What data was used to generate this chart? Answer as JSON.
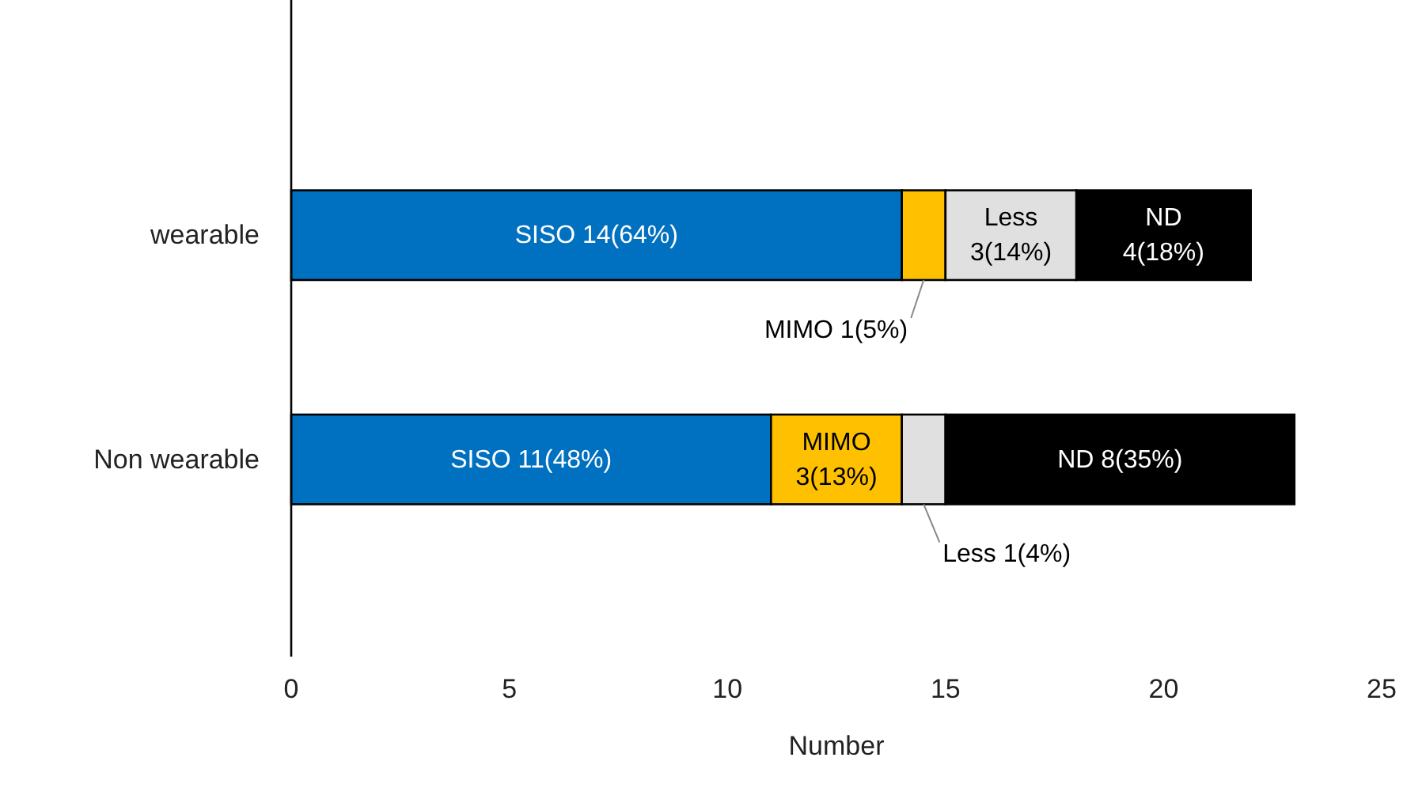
{
  "chart_data": {
    "type": "bar",
    "orientation": "horizontal",
    "stacked": true,
    "xlabel": "Number",
    "categories": [
      "wearable",
      "Non wearable"
    ],
    "xlim": [
      0,
      25
    ],
    "xticks": [
      0,
      5,
      10,
      15,
      20,
      25
    ],
    "grid": false,
    "series": [
      {
        "color": "#0070c0",
        "values": [
          14,
          11
        ],
        "value_labels": [
          "SISO 14(64%)",
          "SISO 11(48%)"
        ]
      },
      {
        "color": "#ffc000",
        "values": [
          1,
          3
        ],
        "value_labels": [
          "MIMO 1(5%)",
          "MIMO\n3(13%)"
        ]
      },
      {
        "color": "#e0e0e0",
        "values": [
          3,
          1
        ],
        "value_labels": [
          "Less\n3(14%)",
          "Less 1(4%)"
        ]
      },
      {
        "color": "#000000",
        "values": [
          4,
          8
        ],
        "value_labels": [
          "ND\n4(18%)",
          "ND 8(35%)"
        ]
      }
    ]
  }
}
